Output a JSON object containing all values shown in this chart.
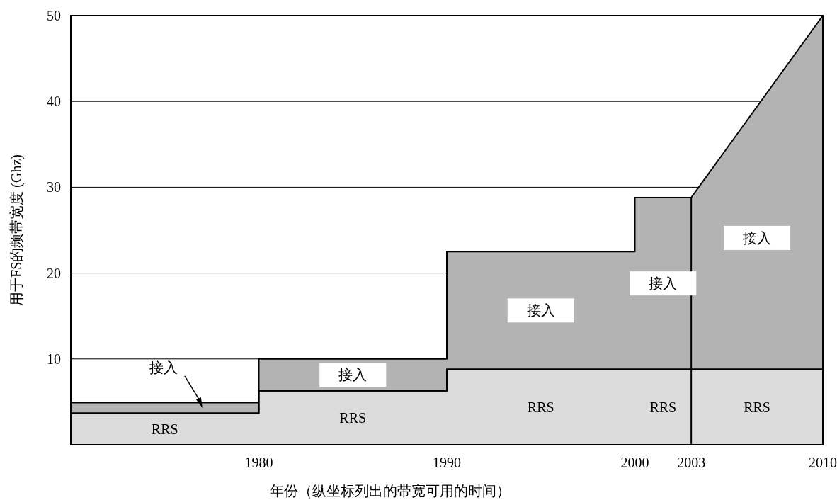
{
  "chart_data": {
    "type": "area",
    "stacked": true,
    "xlabel": "年份（纵坐标列出的带宽可用的时间）",
    "ylabel": "用于FS的频带宽度 (Ghz)",
    "x": [
      1970,
      1980,
      1980,
      1990,
      1990,
      2000,
      2000,
      2003,
      2010
    ],
    "series": [
      {
        "name": "RRS",
        "color": "#dcdcdc",
        "values": [
          3.7,
          3.7,
          6.3,
          6.3,
          8.8,
          8.8,
          8.8,
          8.8,
          8.8
        ]
      },
      {
        "name": "接入",
        "color": "#b3b3b3",
        "values": [
          1.2,
          1.2,
          3.7,
          3.7,
          13.7,
          13.7,
          20,
          20,
          41.2
        ]
      }
    ],
    "xlim": [
      1970,
      2010
    ],
    "xticks": [
      1980,
      1990,
      2000,
      2003,
      2010
    ],
    "ylim": [
      0,
      50
    ],
    "yticks": [
      10,
      20,
      30,
      40,
      50
    ],
    "grid": "y"
  }
}
